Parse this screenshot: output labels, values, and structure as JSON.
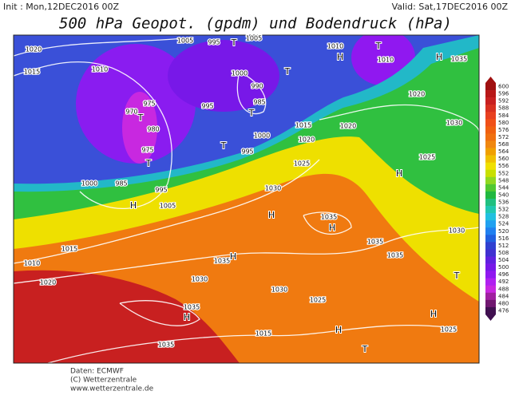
{
  "header": {
    "init": "Init : Mon,12DEC2016 00Z",
    "valid": "Valid: Sat,17DEC2016 00Z",
    "title": "500 hPa Geopot. (gpdm) und Bodendruck (hPa)"
  },
  "colorbar": {
    "levels": [
      600,
      596,
      592,
      588,
      584,
      580,
      576,
      572,
      568,
      564,
      560,
      556,
      552,
      548,
      544,
      540,
      536,
      532,
      528,
      524,
      520,
      516,
      512,
      508,
      504,
      500,
      496,
      492,
      488,
      484,
      480,
      476
    ],
    "colors": [
      "#a01010",
      "#b81818",
      "#c82020",
      "#d83020",
      "#e84020",
      "#f05018",
      "#f06010",
      "#f07010",
      "#f08810",
      "#f0a000",
      "#f0c000",
      "#f0e000",
      "#c8e000",
      "#90d820",
      "#50c830",
      "#20b840",
      "#20c080",
      "#20c8b0",
      "#20c0e0",
      "#20a0f0",
      "#2080f0",
      "#2060e0",
      "#3040d0",
      "#4030d0",
      "#6020e0",
      "#7818e8",
      "#9018f0",
      "#b020f0",
      "#c828e0",
      "#a020a0",
      "#701870",
      "#401050"
    ]
  },
  "map": {
    "pressure_labels": [
      1020,
      1015,
      1010,
      1005,
      995,
      1005,
      1000,
      990,
      985,
      995,
      975,
      970,
      980,
      975,
      985,
      995,
      1000,
      1005,
      1010,
      1020,
      1015,
      1010,
      1010,
      1020,
      1025,
      1030,
      1015,
      1020,
      1030,
      1035,
      1030,
      1035,
      1035,
      1035,
      1030,
      1035,
      1030,
      1025,
      1025,
      1015,
      1035,
      1025,
      1020,
      1035,
      1000,
      995
    ],
    "centers": [
      "T",
      "H",
      "H",
      "T",
      "T",
      "T",
      "T",
      "T",
      "T",
      "H",
      "H",
      "H",
      "H",
      "H",
      "H",
      "H",
      "T",
      "T",
      "H"
    ]
  },
  "footer": {
    "data": "Daten: ECMWF",
    "copyright": "(C) Wetterzentrale",
    "url": "www.wetterzentrale.de"
  }
}
